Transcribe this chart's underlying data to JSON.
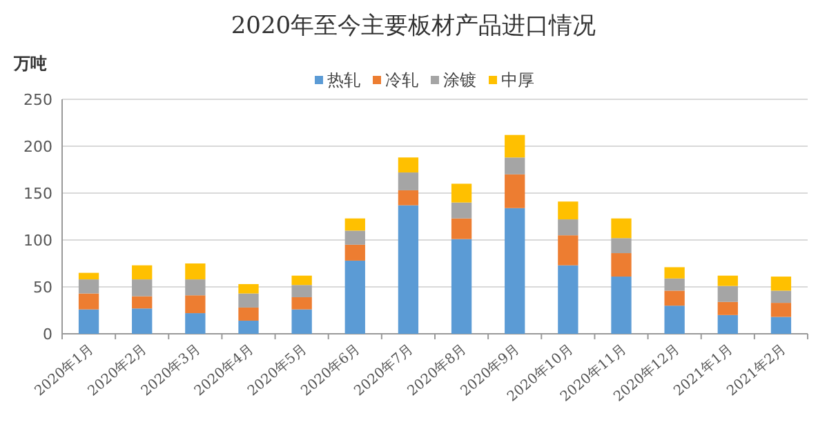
{
  "chart_data": {
    "type": "bar",
    "title": "2020年至今主要板材产品进口情况",
    "ylabel": "万吨",
    "stacked": true,
    "legend": "top right",
    "grid": "y",
    "categories": [
      "2020年1月",
      "2020年2月",
      "2020年3月",
      "2020年4月",
      "2020年5月",
      "2020年6月",
      "2020年7月",
      "2020年8月",
      "2020年9月",
      "2020年10月",
      "2020年11月",
      "2020年12月",
      "2021年1月",
      "2021年2月"
    ],
    "series": [
      {
        "name": "热轧",
        "color": "#5b9bd5",
        "values": [
          26,
          27,
          22,
          14,
          26,
          78,
          137,
          101,
          134,
          73,
          61,
          30,
          20,
          18
        ]
      },
      {
        "name": "冷轧",
        "color": "#ed7d31",
        "values": [
          17,
          13,
          19,
          14,
          13,
          17,
          16,
          22,
          36,
          32,
          25,
          16,
          14,
          15
        ]
      },
      {
        "name": "涂镀",
        "color": "#a5a5a5",
        "values": [
          15,
          18,
          17,
          15,
          13,
          15,
          19,
          17,
          18,
          17,
          16,
          13,
          17,
          13
        ]
      },
      {
        "name": "中厚",
        "color": "#ffc000",
        "values": [
          7,
          15,
          17,
          10,
          10,
          13,
          16,
          20,
          24,
          19,
          21,
          12,
          11,
          15
        ]
      }
    ],
    "ylim": [
      0,
      250
    ],
    "yticks": [
      0,
      50,
      100,
      150,
      200,
      250
    ]
  }
}
